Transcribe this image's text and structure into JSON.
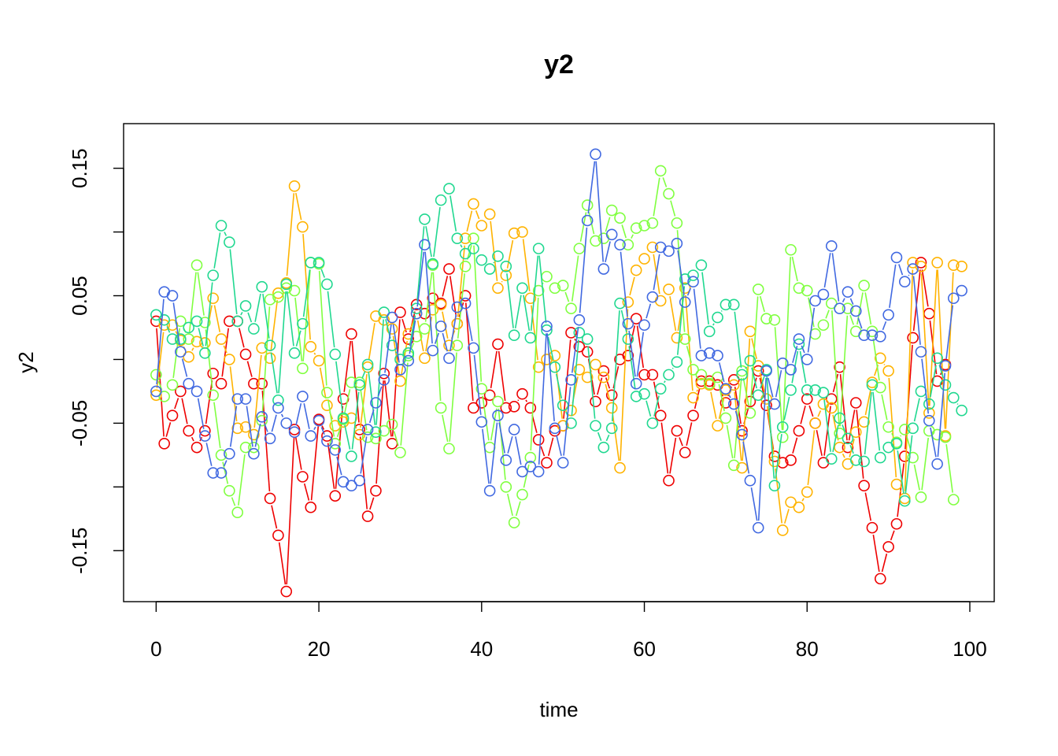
{
  "chart_data": {
    "type": "line",
    "title": "y2",
    "xlabel": "time",
    "ylabel": "y2",
    "xlim": [
      -4,
      103
    ],
    "ylim": [
      -0.19,
      0.185
    ],
    "x_ticks": [
      0,
      20,
      40,
      60,
      80,
      100
    ],
    "x_tick_labels": [
      "0",
      "20",
      "40",
      "60",
      "80",
      "100"
    ],
    "y_ticks": [
      -0.15,
      -0.1,
      -0.05,
      0,
      0.05,
      0.1,
      0.15
    ],
    "y_tick_labels": [
      "-0.15",
      "",
      "-0.05",
      "",
      "0.05",
      "",
      "0.15"
    ],
    "grid": false,
    "legend": "none",
    "markers": "open circles joined by line segments",
    "series": [
      {
        "color": "#ee0000",
        "values": [
          0.03,
          -0.066,
          -0.044,
          -0.025,
          -0.056,
          -0.069,
          -0.056,
          -0.011,
          -0.019,
          0.03,
          0.03,
          0.004,
          -0.019,
          -0.019,
          -0.109,
          -0.138,
          -0.182,
          -0.055,
          -0.092,
          -0.116,
          -0.047,
          -0.06,
          -0.107,
          -0.031,
          0.02,
          -0.055,
          -0.123,
          -0.103,
          -0.011,
          -0.066,
          0.037,
          0.016,
          0.043,
          0.036,
          0.048,
          0.044,
          0.071,
          0.028,
          0.05,
          -0.038,
          -0.034,
          -0.028,
          0.012,
          -0.038,
          -0.037,
          -0.027,
          -0.038,
          -0.063,
          -0.081,
          -0.056,
          -0.052,
          0.021,
          0.01,
          0.006,
          -0.033,
          -0.009,
          -0.028,
          0.0,
          0.003,
          0.032,
          -0.012,
          -0.012,
          -0.044,
          -0.095,
          -0.056,
          -0.073,
          -0.044,
          -0.017,
          -0.017,
          -0.02,
          -0.034,
          -0.016,
          -0.056,
          -0.033,
          -0.009,
          -0.036,
          -0.076,
          -0.081,
          -0.079,
          -0.056,
          -0.031,
          -0.05,
          -0.081,
          -0.031,
          -0.006,
          -0.069,
          -0.034,
          -0.099,
          -0.132,
          -0.172,
          -0.147,
          -0.129,
          -0.076,
          0.017,
          0.076,
          0.036,
          -0.017,
          -0.004
        ]
      },
      {
        "color": "#ffb300",
        "values": [
          -0.028,
          0.027,
          0.027,
          0.015,
          0.002,
          0.014,
          0.013,
          0.048,
          0.016,
          0.0,
          -0.054,
          -0.053,
          -0.059,
          0.009,
          0.001,
          0.052,
          0.06,
          0.136,
          0.104,
          0.01,
          -0.001,
          -0.036,
          -0.052,
          -0.049,
          -0.046,
          -0.059,
          -0.006,
          0.034,
          0.031,
          0.024,
          -0.017,
          0.02,
          0.036,
          0.001,
          0.039,
          0.043,
          0.011,
          0.028,
          0.095,
          0.122,
          0.105,
          0.114,
          0.056,
          0.066,
          0.099,
          0.1,
          0.048,
          -0.006,
          0.0,
          0.003,
          -0.052,
          -0.04,
          -0.008,
          -0.014,
          -0.004,
          -0.014,
          -0.038,
          -0.085,
          0.045,
          0.07,
          0.079,
          0.088,
          0.046,
          0.055,
          0.017,
          0.056,
          -0.03,
          -0.019,
          -0.02,
          -0.052,
          -0.024,
          -0.02,
          -0.085,
          0.022,
          -0.005,
          -0.031,
          -0.08,
          -0.134,
          -0.112,
          -0.116,
          -0.104,
          -0.05,
          -0.035,
          -0.038,
          -0.069,
          -0.082,
          -0.057,
          -0.049,
          -0.018,
          0.001,
          -0.009,
          -0.098,
          -0.109,
          0.076,
          0.073,
          -0.042,
          0.076,
          -0.06,
          0.074,
          0.073
        ]
      },
      {
        "color": "#80ff40",
        "values": [
          -0.012,
          -0.029,
          -0.02,
          0.03,
          0.016,
          0.074,
          0.029,
          -0.028,
          -0.075,
          -0.103,
          -0.12,
          -0.069,
          -0.069,
          -0.048,
          0.047,
          0.049,
          0.056,
          0.054,
          -0.007,
          0.076,
          0.075,
          -0.026,
          -0.066,
          -0.047,
          -0.018,
          -0.018,
          -0.061,
          -0.062,
          -0.056,
          -0.051,
          -0.073,
          0.003,
          0.018,
          0.024,
          0.074,
          -0.038,
          -0.07,
          0.011,
          0.073,
          0.095,
          -0.023,
          -0.069,
          -0.033,
          -0.1,
          -0.128,
          -0.106,
          -0.077,
          0.054,
          0.065,
          0.056,
          0.058,
          0.04,
          0.087,
          0.121,
          0.093,
          0.095,
          0.117,
          0.111,
          0.09,
          0.103,
          0.105,
          0.107,
          0.148,
          0.13,
          0.107,
          0.016,
          -0.008,
          -0.012,
          -0.019,
          -0.014,
          -0.046,
          -0.083,
          -0.009,
          -0.042,
          0.055,
          0.032,
          0.031,
          -0.061,
          0.086,
          0.056,
          0.054,
          0.02,
          0.027,
          0.044,
          -0.058,
          0.04,
          0.022,
          0.058,
          0.022,
          -0.022,
          -0.053,
          -0.065,
          -0.055,
          -0.077,
          -0.108,
          -0.056,
          -0.059,
          -0.061,
          -0.11
        ]
      },
      {
        "color": "#20d890",
        "values": [
          0.035,
          0.031,
          0.016,
          0.016,
          0.025,
          0.03,
          0.005,
          0.066,
          0.105,
          0.092,
          0.03,
          0.042,
          0.024,
          0.057,
          0.011,
          -0.032,
          0.059,
          0.005,
          0.028,
          0.076,
          0.076,
          0.059,
          0.004,
          -0.046,
          -0.076,
          -0.02,
          -0.004,
          -0.057,
          0.037,
          0.011,
          0.0,
          0.005,
          0.04,
          0.11,
          0.075,
          0.125,
          0.134,
          0.095,
          0.083,
          0.087,
          0.078,
          0.071,
          0.081,
          0.073,
          0.019,
          0.056,
          0.017,
          0.087,
          0.023,
          -0.006,
          -0.036,
          -0.05,
          0.021,
          0.016,
          -0.052,
          -0.069,
          -0.054,
          0.044,
          0.016,
          -0.029,
          -0.027,
          -0.05,
          -0.023,
          -0.012,
          -0.002,
          0.063,
          0.066,
          0.074,
          0.022,
          0.033,
          0.043,
          0.043,
          -0.012,
          -0.001,
          -0.028,
          -0.008,
          -0.099,
          -0.053,
          -0.024,
          0.012,
          -0.024,
          -0.024,
          -0.026,
          -0.078,
          -0.046,
          -0.062,
          -0.079,
          -0.08,
          -0.02,
          -0.077,
          -0.069,
          -0.066,
          -0.111,
          -0.054,
          -0.025,
          -0.035,
          0.001,
          -0.02,
          -0.03,
          -0.04
        ]
      },
      {
        "color": "#4169e1",
        "values": [
          -0.025,
          0.053,
          0.05,
          0.006,
          -0.019,
          -0.025,
          -0.06,
          -0.089,
          -0.089,
          -0.074,
          -0.031,
          -0.031,
          -0.074,
          -0.045,
          -0.062,
          -0.038,
          -0.05,
          -0.057,
          -0.029,
          -0.06,
          -0.048,
          -0.064,
          -0.071,
          -0.096,
          -0.099,
          -0.095,
          -0.055,
          -0.034,
          -0.016,
          0.033,
          -0.008,
          -0.001,
          0.036,
          0.09,
          0.007,
          0.026,
          0.001,
          0.041,
          0.044,
          0.009,
          -0.049,
          -0.103,
          -0.044,
          -0.079,
          -0.055,
          -0.088,
          -0.084,
          -0.088,
          0.026,
          -0.054,
          -0.081,
          -0.016,
          0.031,
          0.109,
          0.161,
          0.071,
          0.098,
          0.09,
          0.028,
          -0.019,
          0.027,
          0.049,
          0.088,
          0.085,
          0.091,
          0.045,
          0.061,
          0.003,
          0.005,
          0.003,
          -0.023,
          -0.035,
          -0.059,
          -0.095,
          -0.132,
          -0.009,
          -0.035,
          -0.003,
          -0.008,
          0.016,
          0.0,
          0.046,
          0.051,
          0.089,
          0.04,
          0.053,
          0.038,
          0.019,
          0.019,
          0.018,
          0.035,
          0.08,
          0.061,
          0.071,
          0.006,
          -0.048,
          -0.082,
          -0.005,
          0.048,
          0.054
        ]
      }
    ]
  }
}
